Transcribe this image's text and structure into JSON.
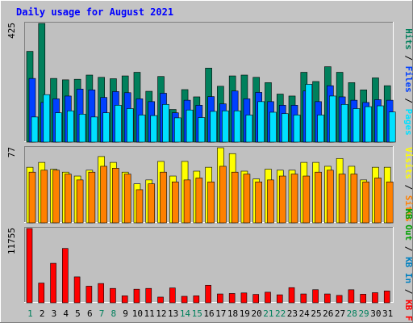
{
  "title": "Daily usage for August 2021",
  "colors": {
    "background": "#c4c4c4",
    "panel": "#c0c0c0",
    "title": "#0000ff",
    "hits": "#00805c",
    "files": "#0040ff",
    "pages": "#00e0ff",
    "visits": "#ffff00",
    "sites": "#ff8000",
    "kb_in": "#0080c0",
    "kb_out": "#00a000",
    "kbf": "#ff0000",
    "axis": "#000000"
  },
  "chart_data": [
    {
      "type": "bar",
      "panel": "top",
      "max_label": "425",
      "ylim": [
        0,
        425
      ],
      "categories": [
        "1",
        "2",
        "3",
        "4",
        "5",
        "6",
        "7",
        "8",
        "9",
        "10",
        "11",
        "12",
        "13",
        "14",
        "15",
        "16",
        "17",
        "18",
        "19",
        "20",
        "21",
        "22",
        "23",
        "24",
        "25",
        "26",
        "27",
        "28",
        "29",
        "30",
        "31"
      ],
      "legend": [
        {
          "label": "Pages",
          "color_key": "pages"
        },
        {
          "label": "Files",
          "color_key": "files"
        },
        {
          "label": "Hits",
          "color_key": "hits"
        }
      ],
      "series": [
        {
          "name": "Hits",
          "color_key": "hits",
          "values": [
            325,
            425,
            228,
            223,
            225,
            240,
            232,
            227,
            237,
            250,
            182,
            235,
            117,
            188,
            162,
            265,
            200,
            237,
            240,
            232,
            213,
            172,
            165,
            250,
            217,
            270,
            250,
            213,
            187,
            230,
            202
          ]
        },
        {
          "name": "Files",
          "color_key": "files",
          "values": [
            228,
            142,
            155,
            165,
            190,
            187,
            160,
            181,
            177,
            155,
            145,
            175,
            105,
            150,
            132,
            163,
            137,
            183,
            155,
            178,
            145,
            132,
            132,
            183,
            145,
            202,
            162,
            150,
            142,
            152,
            150
          ]
        },
        {
          "name": "Pages",
          "color_key": "pages",
          "values": [
            90,
            170,
            105,
            112,
            100,
            90,
            105,
            132,
            120,
            97,
            95,
            135,
            87,
            115,
            88,
            110,
            112,
            112,
            97,
            145,
            107,
            102,
            97,
            207,
            97,
            165,
            135,
            120,
            127,
            130,
            108
          ]
        }
      ]
    },
    {
      "type": "bar",
      "panel": "middle",
      "max_label": "77",
      "ylim": [
        0,
        77
      ],
      "categories": [
        "1",
        "2",
        "3",
        "4",
        "5",
        "6",
        "7",
        "8",
        "9",
        "10",
        "11",
        "12",
        "13",
        "14",
        "15",
        "16",
        "17",
        "18",
        "19",
        "20",
        "21",
        "22",
        "23",
        "24",
        "25",
        "26",
        "27",
        "28",
        "29",
        "30",
        "31"
      ],
      "legend": [
        {
          "label": "Sites",
          "color_key": "sites"
        },
        {
          "label": "Visits",
          "color_key": "visits"
        }
      ],
      "series": [
        {
          "name": "Visits",
          "color_key": "visits",
          "values": [
            57,
            62,
            55,
            52,
            48,
            54,
            68,
            62,
            52,
            40,
            44,
            63,
            48,
            63,
            53,
            57,
            77,
            71,
            53,
            45,
            55,
            54,
            54,
            62,
            62,
            58,
            66,
            58,
            44,
            57,
            57
          ]
        },
        {
          "name": "Sites",
          "color_key": "sites",
          "values": [
            52,
            54,
            54,
            50,
            44,
            52,
            58,
            56,
            50,
            34,
            40,
            52,
            42,
            44,
            46,
            42,
            58,
            52,
            50,
            42,
            44,
            48,
            50,
            48,
            52,
            54,
            50,
            50,
            42,
            46,
            42
          ]
        }
      ]
    },
    {
      "type": "bar",
      "panel": "bottom",
      "max_label": "11755",
      "ylim": [
        0,
        11755
      ],
      "categories": [
        "1",
        "2",
        "3",
        "4",
        "5",
        "6",
        "7",
        "8",
        "9",
        "10",
        "11",
        "12",
        "13",
        "14",
        "15",
        "16",
        "17",
        "18",
        "19",
        "20",
        "21",
        "22",
        "23",
        "24",
        "25",
        "26",
        "27",
        "28",
        "29",
        "30",
        "31"
      ],
      "legend": [
        {
          "label": "KB F",
          "color_key": "kbf"
        },
        {
          "label": "KB In",
          "color_key": "kb_in"
        },
        {
          "label": "KB Out",
          "color_key": "kb_out"
        }
      ],
      "series": [
        {
          "name": "KB F",
          "color_key": "kbf",
          "values": [
            11755,
            3125,
            6250,
            8600,
            4100,
            2625,
            3050,
            2275,
            1100,
            2150,
            2275,
            900,
            2350,
            1025,
            1100,
            2775,
            1400,
            1475,
            1560,
            1330,
            1675,
            1265,
            2400,
            1400,
            2075,
            1400,
            1170,
            2065,
            1360,
            1600,
            1870
          ]
        }
      ]
    }
  ]
}
